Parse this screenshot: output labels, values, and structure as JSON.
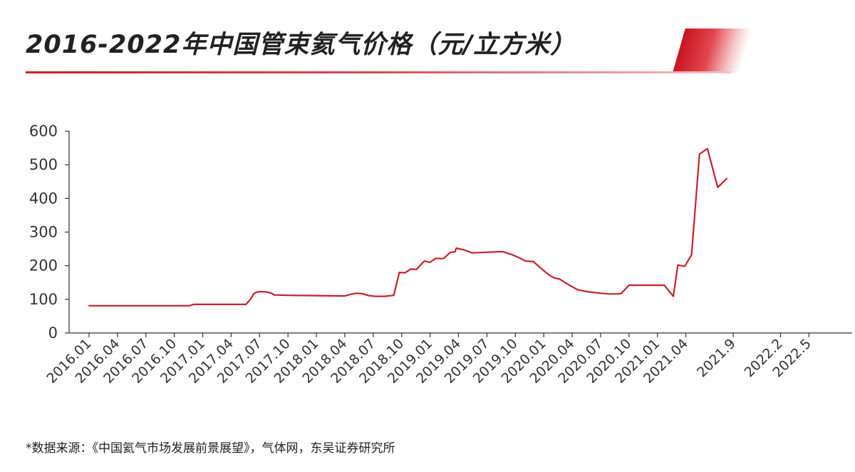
{
  "page": {
    "title": "2016-2022年中国管束氦气价格（元/立方米）",
    "source": "*数据来源：《中国氦气市场发展前景展望》，气体网，东吴证券研究所"
  },
  "colors": {
    "line": "#c8202a",
    "accent": "#c8141e",
    "axis": "#333333"
  },
  "chart_data": {
    "type": "line",
    "title": "2016-2022年中国管束氦气价格（元/立方米）",
    "xlabel": "",
    "ylabel": "",
    "ylim": [
      0,
      600
    ],
    "yticks": [
      0,
      100,
      200,
      300,
      400,
      500,
      600
    ],
    "xlim": [
      2016.0,
      2022.55
    ],
    "grid": false,
    "legend": "none",
    "x_tick_labels": [
      {
        "label": "2016.01",
        "x": 2016.0
      },
      {
        "label": "2016.04",
        "x": 2016.25
      },
      {
        "label": "2016.07",
        "x": 2016.5
      },
      {
        "label": "2016.10",
        "x": 2016.75
      },
      {
        "label": "2017.01",
        "x": 2017.0
      },
      {
        "label": "2017.04",
        "x": 2017.25
      },
      {
        "label": "2017.07",
        "x": 2017.5
      },
      {
        "label": "2017.10",
        "x": 2017.75
      },
      {
        "label": "2018.01",
        "x": 2018.0
      },
      {
        "label": "2018.04",
        "x": 2018.25
      },
      {
        "label": "2018.07",
        "x": 2018.5
      },
      {
        "label": "2018.10",
        "x": 2018.75
      },
      {
        "label": "2019.01",
        "x": 2019.0
      },
      {
        "label": "2019.04",
        "x": 2019.25
      },
      {
        "label": "2019.07",
        "x": 2019.5
      },
      {
        "label": "2019.10",
        "x": 2019.75
      },
      {
        "label": "2020.01",
        "x": 2020.0
      },
      {
        "label": "2020.04",
        "x": 2020.25
      },
      {
        "label": "2020.07",
        "x": 2020.5
      },
      {
        "label": "2020.10",
        "x": 2020.75
      },
      {
        "label": "2021.01",
        "x": 2021.0
      },
      {
        "label": "2021.04",
        "x": 2021.25
      },
      {
        "label": "2021.9",
        "x": 2021.667
      },
      {
        "label": "2022.2",
        "x": 2022.083
      },
      {
        "label": "2022.5",
        "x": 2022.333
      }
    ],
    "series": [
      {
        "name": "",
        "points": [
          [
            2016.0,
            81
          ],
          [
            2016.2,
            81
          ],
          [
            2016.5,
            81
          ],
          [
            2016.75,
            81
          ],
          [
            2016.88,
            81
          ],
          [
            2016.92,
            85
          ],
          [
            2017.0,
            85
          ],
          [
            2017.3,
            85
          ],
          [
            2017.38,
            85
          ],
          [
            2017.42,
            100
          ],
          [
            2017.45,
            117
          ],
          [
            2017.48,
            122
          ],
          [
            2017.52,
            123
          ],
          [
            2017.56,
            122
          ],
          [
            2017.6,
            119
          ],
          [
            2017.63,
            113
          ],
          [
            2017.75,
            112
          ],
          [
            2018.0,
            111
          ],
          [
            2018.25,
            110
          ],
          [
            2018.3,
            115
          ],
          [
            2018.35,
            118
          ],
          [
            2018.4,
            117
          ],
          [
            2018.46,
            111
          ],
          [
            2018.52,
            109
          ],
          [
            2018.6,
            109
          ],
          [
            2018.68,
            112
          ],
          [
            2018.73,
            180
          ],
          [
            2018.78,
            179
          ],
          [
            2018.83,
            190
          ],
          [
            2018.88,
            189
          ],
          [
            2018.95,
            214
          ],
          [
            2019.0,
            210
          ],
          [
            2019.05,
            222
          ],
          [
            2019.1,
            221
          ],
          [
            2019.12,
            222
          ],
          [
            2019.18,
            240
          ],
          [
            2019.22,
            241
          ],
          [
            2019.23,
            252
          ],
          [
            2019.3,
            247
          ],
          [
            2019.37,
            238
          ],
          [
            2019.5,
            240
          ],
          [
            2019.64,
            242
          ],
          [
            2019.72,
            233
          ],
          [
            2019.8,
            221
          ],
          [
            2019.84,
            214
          ],
          [
            2019.88,
            213
          ],
          [
            2019.91,
            212
          ],
          [
            2019.95,
            200
          ],
          [
            2020.0,
            185
          ],
          [
            2020.05,
            172
          ],
          [
            2020.09,
            164
          ],
          [
            2020.14,
            160
          ],
          [
            2020.21,
            145
          ],
          [
            2020.3,
            128
          ],
          [
            2020.4,
            122
          ],
          [
            2020.5,
            118
          ],
          [
            2020.58,
            116
          ],
          [
            2020.63,
            116
          ],
          [
            2020.68,
            117
          ],
          [
            2020.75,
            142
          ],
          [
            2021.0,
            142
          ],
          [
            2021.06,
            142
          ],
          [
            2021.14,
            109
          ],
          [
            2021.18,
            202
          ],
          [
            2021.24,
            198
          ],
          [
            2021.3,
            232
          ],
          [
            2021.37,
            532
          ],
          [
            2021.44,
            548
          ],
          [
            2021.53,
            433
          ],
          [
            2021.61,
            459
          ]
        ]
      }
    ]
  }
}
